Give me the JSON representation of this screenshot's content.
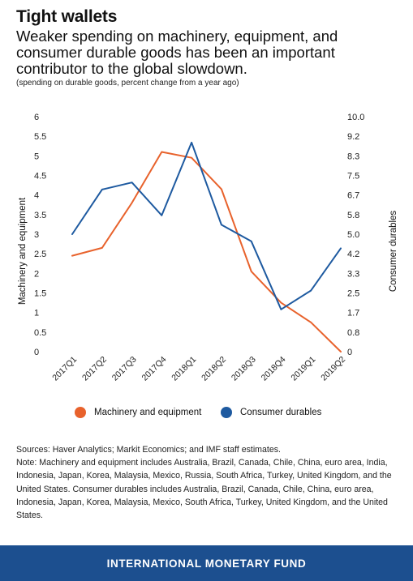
{
  "header": {
    "title": "Tight wallets",
    "subtitle": "Weaker spending on machinery, equipment, and consumer durable goods has been an important contributor to the global slowdown.",
    "units_note": "(spending on durable goods, percent change from a year ago)"
  },
  "chart_data": {
    "type": "line",
    "categories": [
      "2017Q1",
      "2017Q2",
      "2017Q3",
      "2017Q4",
      "2018Q1",
      "2018Q2",
      "2018Q3",
      "2018Q4",
      "2019Q1",
      "2019Q2"
    ],
    "series": [
      {
        "name": "Machinery and equipment",
        "axis": "left",
        "color": "#e8622c",
        "values": [
          2.45,
          2.65,
          3.8,
          5.1,
          4.95,
          4.15,
          2.05,
          1.25,
          0.75,
          0.0
        ]
      },
      {
        "name": "Consumer durables",
        "axis": "right",
        "color": "#1e5aa0",
        "values": [
          5.0,
          6.9,
          7.2,
          5.8,
          8.9,
          5.4,
          4.7,
          1.8,
          2.6,
          4.4
        ]
      }
    ],
    "ylabel_left": "Machinery and equipment",
    "ylabel_right": "Consumer durables",
    "ylim_left": [
      0,
      6
    ],
    "ylim_right": [
      0,
      10
    ],
    "yticks_left": [
      "0",
      "0.5",
      "1",
      "1.5",
      "2",
      "2.5",
      "3",
      "3.5",
      "4",
      "4.5",
      "5",
      "5.5",
      "6"
    ],
    "yticks_right": [
      "0",
      "0.8",
      "1.7",
      "2.5",
      "3.3",
      "4.2",
      "5.0",
      "5.8",
      "6.7",
      "7.5",
      "8.3",
      "9.2",
      "10.0"
    ],
    "grid": false,
    "legend_position": "bottom"
  },
  "legend": {
    "items": [
      {
        "label": "Machinery and equipment",
        "color": "#e8622c"
      },
      {
        "label": "Consumer durables",
        "color": "#1e5aa0"
      }
    ]
  },
  "notes": {
    "sources": "Sources: Haver Analytics; Markit Economics; and IMF staff estimates.",
    "note": "Note: Machinery and equipment includes Australia, Brazil, Canada, Chile, China, euro area, India, Indonesia, Japan, Korea, Malaysia, Mexico, Russia, South Africa, Turkey, United Kingdom, and the United States. Consumer durables includes Australia, Brazil, Canada, Chile, China, euro area, Indonesia, Japan, Korea, Malaysia, Mexico, South Africa, Turkey, United Kingdom, and the United States."
  },
  "footer": {
    "label": "INTERNATIONAL MONETARY FUND",
    "background": "#1c4f8f"
  }
}
